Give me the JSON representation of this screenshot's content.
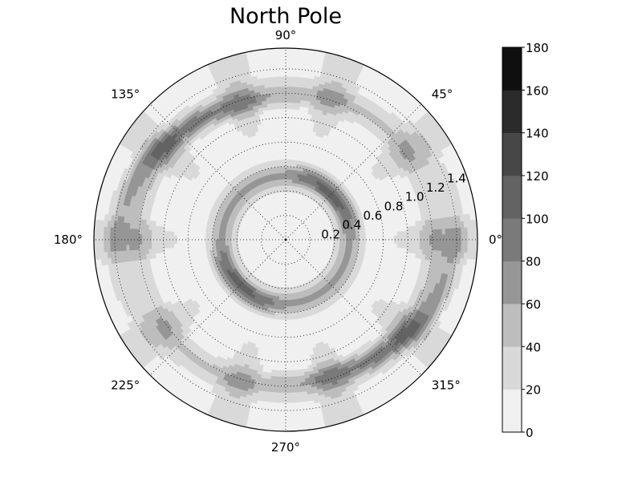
{
  "chart_data": {
    "type": "heatmap",
    "projection": "polar",
    "title": "North Pole",
    "angle_tick_labels": [
      "0°",
      "45°",
      "90°",
      "135°",
      "180°",
      "225°",
      "270°",
      "315°"
    ],
    "angle_ticks_deg": [
      0,
      45,
      90,
      135,
      180,
      225,
      270,
      315
    ],
    "radial_tick_labels": [
      "0.2",
      "0.4",
      "0.6",
      "0.8",
      "1.0",
      "1.2",
      "1.4"
    ],
    "radial_ticks": [
      0.2,
      0.4,
      0.6,
      0.8,
      1.0,
      1.2,
      1.4
    ],
    "rlim": [
      0,
      1.57
    ],
    "grid": true,
    "colorbar": {
      "levels": [
        0,
        20,
        40,
        60,
        80,
        100,
        120,
        140,
        160,
        180
      ],
      "tick_labels": [
        "0",
        "20",
        "40",
        "60",
        "80",
        "100",
        "120",
        "140",
        "160",
        "180"
      ],
      "colors": [
        "#f0f0f0",
        "#d9d9d9",
        "#bdbdbd",
        "#969696",
        "#7a7a7a",
        "#636363",
        "#474747",
        "#2b2b2b",
        "#0f0f0f"
      ],
      "placement": "right"
    },
    "field": {
      "description_terms": [
        {
          "kind": "gauss_ring",
          "center_r": 0.53,
          "width": 0.11,
          "amp": 60
        },
        {
          "kind": "gauss_ring_mod",
          "center_r": 0.53,
          "width": 0.07,
          "amp": 45,
          "harmonic": 2,
          "phase_deg": 90
        },
        {
          "kind": "gauss_ring",
          "center_r": 1.22,
          "width": 0.12,
          "amp": 35
        },
        {
          "kind": "spiral_band",
          "center_r": 1.28,
          "width": 0.09,
          "amp": 55,
          "harmonic": 2,
          "phase_deg": 20
        },
        {
          "kind": "radial_stripes",
          "amp": 25,
          "harmonic": 10,
          "min_r": 0.7
        }
      ]
    }
  }
}
